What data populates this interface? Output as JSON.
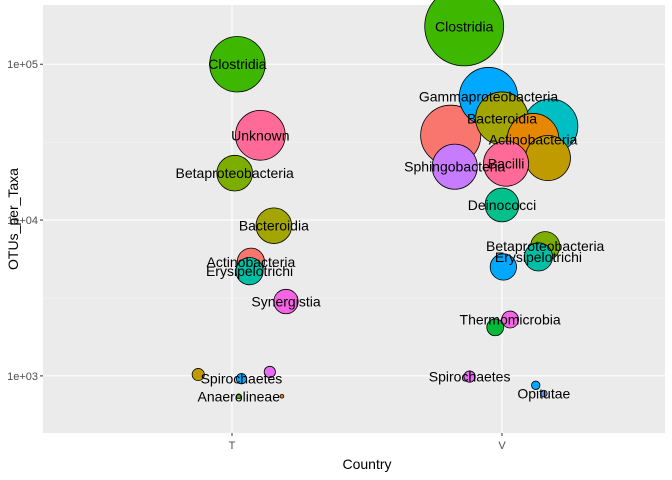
{
  "chart_data": {
    "type": "scatter",
    "title": "",
    "xlabel": "Country",
    "ylabel": "OTUs_per_Taxa",
    "x_categories": [
      "T",
      "V"
    ],
    "y_scale": "log10",
    "ylim": [
      430,
      240000
    ],
    "y_ticks": [
      {
        "value": 1000,
        "label": "1e+03"
      },
      {
        "value": 10000,
        "label": "1e+04"
      },
      {
        "value": 100000,
        "label": "1e+05"
      }
    ],
    "grid": true,
    "legend": "none",
    "points": [
      {
        "x": "T",
        "jitter": 0.04,
        "y": 100000,
        "size": 0.59,
        "color": "#3DB700",
        "label": "Clostridia"
      },
      {
        "x": "T",
        "jitter": 0.21,
        "y": 35000,
        "size": 0.53,
        "color": "#FF6A98",
        "label": "Unknown"
      },
      {
        "x": "T",
        "jitter": 0.02,
        "y": 20000,
        "size": 0.38,
        "color": "#7CAE00",
        "label": "Betaproteobacteria"
      },
      {
        "x": "T",
        "jitter": 0.31,
        "y": 9200,
        "size": 0.38,
        "color": "#A3A500",
        "label": "Bacteroidia"
      },
      {
        "x": "T",
        "jitter": 0.14,
        "y": 5400,
        "size": 0.29,
        "color": "#F8766D",
        "label": "Actinobacteria"
      },
      {
        "x": "T",
        "jitter": 0.13,
        "y": 4700,
        "size": 0.29,
        "color": "#00BFA4",
        "label": "Erysipelotrichi"
      },
      {
        "x": "T",
        "jitter": 0.4,
        "y": 3000,
        "size": 0.26,
        "color": "#F564E3",
        "label": "Synergistia"
      },
      {
        "x": "T",
        "jitter": -0.25,
        "y": 1020,
        "size": 0.13,
        "color": "#C09B00",
        "label": ""
      },
      {
        "x": "T",
        "jitter": 0.07,
        "y": 960,
        "size": 0.11,
        "color": "#00A9FF",
        "label": "Spirochaetes"
      },
      {
        "x": "T",
        "jitter": 0.28,
        "y": 1060,
        "size": 0.12,
        "color": "#E76BF3",
        "label": ""
      },
      {
        "x": "T",
        "jitter": 0.05,
        "y": 740,
        "size": 0.05,
        "color": "#53B400",
        "label": "Anaerolineae"
      },
      {
        "x": "T",
        "jitter": 0.37,
        "y": 740,
        "size": 0.04,
        "color": "#E58700",
        "label": ""
      },
      {
        "x": "V",
        "jitter": -0.28,
        "y": 175000,
        "size": 0.84,
        "color": "#3DB700",
        "label": "Clostridia"
      },
      {
        "x": "V",
        "jitter": -0.1,
        "y": 62000,
        "size": 0.62,
        "color": "#00A9FF",
        "label": "Gammaproteobacteria"
      },
      {
        "x": "V",
        "jitter": -0.38,
        "y": 35000,
        "size": 0.64,
        "color": "#F8766D",
        "label": ""
      },
      {
        "x": "V",
        "jitter": 0.0,
        "y": 45000,
        "size": 0.56,
        "color": "#A3A500",
        "label": "Bacteroidia"
      },
      {
        "x": "V",
        "jitter": 0.36,
        "y": 40000,
        "size": 0.58,
        "color": "#00BFC4",
        "label": ""
      },
      {
        "x": "V",
        "jitter": 0.23,
        "y": 33000,
        "size": 0.55,
        "color": "#E58700",
        "label": "Actinobacteria"
      },
      {
        "x": "V",
        "jitter": 0.34,
        "y": 25000,
        "size": 0.48,
        "color": "#C09B00",
        "label": ""
      },
      {
        "x": "V",
        "jitter": 0.03,
        "y": 23000,
        "size": 0.48,
        "color": "#FF6A98",
        "label": "Bacilli"
      },
      {
        "x": "V",
        "jitter": -0.35,
        "y": 22000,
        "size": 0.48,
        "color": "#C77CFF",
        "label": "Sphingobacteria"
      },
      {
        "x": "V",
        "jitter": 0.0,
        "y": 12500,
        "size": 0.36,
        "color": "#00C08B",
        "label": "Deinococci"
      },
      {
        "x": "V",
        "jitter": 0.32,
        "y": 6800,
        "size": 0.31,
        "color": "#7CAE00",
        "label": "Betaproteobacteria"
      },
      {
        "x": "V",
        "jitter": 0.27,
        "y": 5800,
        "size": 0.3,
        "color": "#00BFA4",
        "label": "Erysipelotrichi"
      },
      {
        "x": "V",
        "jitter": 0.01,
        "y": 5000,
        "size": 0.28,
        "color": "#00A9FF",
        "label": ""
      },
      {
        "x": "V",
        "jitter": 0.06,
        "y": 2300,
        "size": 0.18,
        "color": "#F564E3",
        "label": "Thermomicrobia"
      },
      {
        "x": "V",
        "jitter": -0.05,
        "y": 2050,
        "size": 0.18,
        "color": "#00BA38",
        "label": ""
      },
      {
        "x": "V",
        "jitter": -0.24,
        "y": 990,
        "size": 0.12,
        "color": "#E76BF3",
        "label": "Spirochaetes"
      },
      {
        "x": "V",
        "jitter": 0.25,
        "y": 870,
        "size": 0.09,
        "color": "#00A9FF",
        "label": ""
      },
      {
        "x": "V",
        "jitter": 0.31,
        "y": 770,
        "size": 0.07,
        "color": "#619CFF",
        "label": "Opitutae"
      }
    ]
  }
}
